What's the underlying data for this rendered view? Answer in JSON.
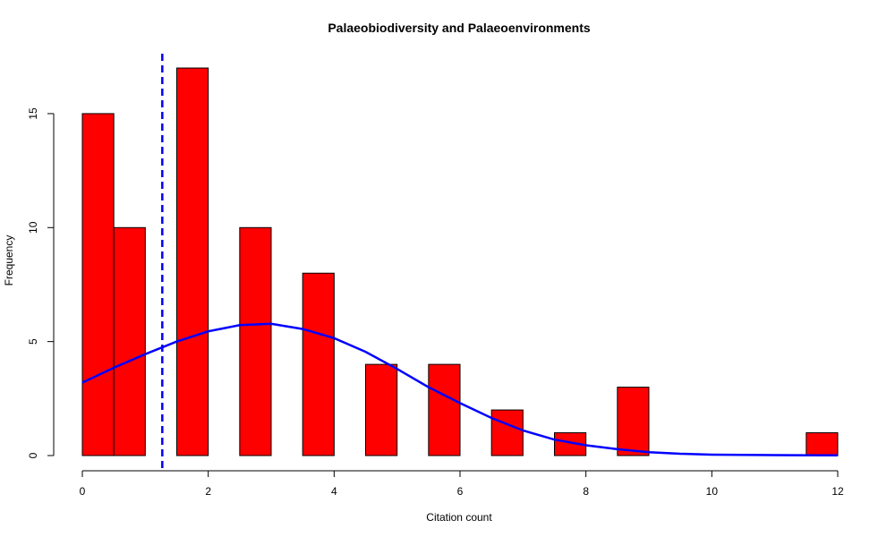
{
  "chart_data": {
    "type": "bar",
    "title": "Palaeobiodiversity and Palaeoenvironments",
    "xlabel": "Citation count",
    "ylabel": "Frequency",
    "xlim": [
      0,
      12
    ],
    "ylim": [
      0,
      17
    ],
    "x_ticks": [
      "0",
      "2",
      "4",
      "6",
      "8",
      "10",
      "12"
    ],
    "y_ticks": [
      "0",
      "5",
      "10",
      "15"
    ],
    "bars": [
      {
        "x0": 0,
        "x1": 0.5,
        "value": 15
      },
      {
        "x0": 0.5,
        "x1": 1,
        "value": 10
      },
      {
        "x0": 1.5,
        "x1": 2,
        "value": 17
      },
      {
        "x0": 2.5,
        "x1": 3,
        "value": 10
      },
      {
        "x0": 3.5,
        "x1": 4,
        "value": 8
      },
      {
        "x0": 4.5,
        "x1": 5,
        "value": 4
      },
      {
        "x0": 5.5,
        "x1": 6,
        "value": 4
      },
      {
        "x0": 6.5,
        "x1": 7,
        "value": 2
      },
      {
        "x0": 7.5,
        "x1": 8,
        "value": 1
      },
      {
        "x0": 8.5,
        "x1": 9,
        "value": 3
      },
      {
        "x0": 11.5,
        "x1": 12,
        "value": 1
      }
    ],
    "bar_color": "#ff0000",
    "density_curve": {
      "color": "#0000ff",
      "points": [
        [
          0,
          3.2
        ],
        [
          0.5,
          3.85
        ],
        [
          1,
          4.45
        ],
        [
          1.5,
          5.0
        ],
        [
          2,
          5.45
        ],
        [
          2.5,
          5.72
        ],
        [
          3,
          5.78
        ],
        [
          3.5,
          5.55
        ],
        [
          4,
          5.15
        ],
        [
          4.5,
          4.55
        ],
        [
          5,
          3.8
        ],
        [
          5.5,
          3.0
        ],
        [
          6,
          2.3
        ],
        [
          6.5,
          1.65
        ],
        [
          7,
          1.1
        ],
        [
          7.5,
          0.7
        ],
        [
          8,
          0.45
        ],
        [
          8.5,
          0.28
        ],
        [
          9,
          0.15
        ],
        [
          9.5,
          0.08
        ],
        [
          10,
          0.04
        ],
        [
          11,
          0.02
        ],
        [
          12,
          0.01
        ]
      ]
    },
    "reference_line": {
      "x": 1.27,
      "color": "#0000ff",
      "style": "dashed"
    },
    "grid": false
  }
}
